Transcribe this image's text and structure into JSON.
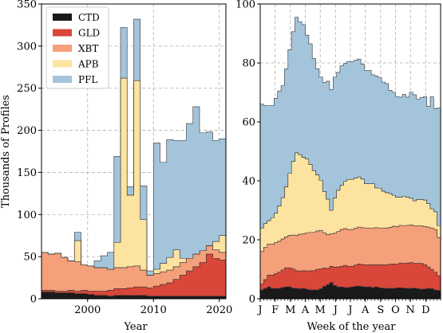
{
  "chart_data": [
    {
      "type": "area",
      "step": true,
      "xlabel": "Year",
      "ylabel": "Thousands of Profiles",
      "xlim": [
        1993,
        2021
      ],
      "ylim": [
        0,
        350
      ],
      "x_ticks": [
        2000,
        2010,
        2020
      ],
      "x_tick_labels": [
        "2000",
        "2010",
        "2020"
      ],
      "y_ticks": [
        0,
        50,
        100,
        150,
        200,
        250,
        300,
        350
      ],
      "y_tick_labels": [
        "0",
        "50",
        "100",
        "150",
        "200",
        "250",
        "300",
        "350"
      ],
      "grid": true,
      "legend_position": "top-left",
      "x": [
        1993,
        1994,
        1995,
        1996,
        1997,
        1998,
        1999,
        2000,
        2001,
        2002,
        2003,
        2004,
        2005,
        2006,
        2007,
        2008,
        2009,
        2010,
        2011,
        2012,
        2013,
        2014,
        2015,
        2016,
        2017,
        2018,
        2019,
        2020
      ],
      "series": [
        {
          "name": "CTD",
          "color": "#1a1a1a",
          "values": [
            8,
            8,
            7,
            7,
            7,
            6,
            6,
            5,
            4,
            4,
            3,
            4,
            4,
            4,
            4,
            4,
            3,
            3,
            3,
            3,
            3,
            3,
            3,
            3,
            3,
            3,
            3,
            3
          ]
        },
        {
          "name": "GLD",
          "color": "#d9463a",
          "values": [
            2,
            2,
            2,
            2,
            3,
            3,
            4,
            4,
            5,
            5,
            7,
            8,
            8,
            9,
            10,
            10,
            10,
            12,
            14,
            16,
            20,
            25,
            30,
            35,
            40,
            50,
            45,
            43
          ]
        },
        {
          "name": "XBT",
          "color": "#f4a07a",
          "values": [
            45,
            43,
            45,
            40,
            35,
            35,
            30,
            30,
            28,
            28,
            25,
            25,
            25,
            25,
            25,
            20,
            15,
            15,
            15,
            15,
            15,
            15,
            15,
            15,
            14,
            10,
            10,
            9
          ]
        },
        {
          "name": "APB",
          "color": "#fde3a0",
          "values": [
            0,
            0,
            0,
            0,
            0,
            25,
            0,
            0,
            0,
            0,
            0,
            30,
            225,
            85,
            220,
            60,
            0,
            5,
            10,
            15,
            20,
            5,
            0,
            0,
            0,
            0,
            10,
            20
          ]
        },
        {
          "name": "PFL",
          "color": "#a3c4db",
          "values": [
            0,
            0,
            0,
            0,
            0,
            10,
            0,
            0,
            8,
            14,
            20,
            102,
            60,
            10,
            73,
            40,
            5,
            150,
            120,
            140,
            130,
            140,
            160,
            175,
            140,
            135,
            120,
            115
          ]
        }
      ]
    },
    {
      "type": "area",
      "step": true,
      "xlabel": "Week of the year",
      "ylabel": "",
      "xlim": [
        1,
        53
      ],
      "ylim": [
        0,
        100
      ],
      "x_ticks": [
        1,
        5.3,
        9.7,
        14,
        18.3,
        22.7,
        27,
        31.3,
        35.7,
        40,
        44.3,
        48.7
      ],
      "x_tick_labels": [
        "J",
        "F",
        "M",
        "A",
        "M",
        "J",
        "J",
        "A",
        "S",
        "O",
        "N",
        "D"
      ],
      "y_ticks": [
        0,
        20,
        40,
        60,
        80,
        100
      ],
      "y_tick_labels": [
        "0",
        "20",
        "40",
        "60",
        "80",
        "100"
      ],
      "grid": true,
      "x": [
        1,
        2,
        3,
        4,
        5,
        6,
        7,
        8,
        9,
        10,
        11,
        12,
        13,
        14,
        15,
        16,
        17,
        18,
        19,
        20,
        21,
        22,
        23,
        24,
        25,
        26,
        27,
        28,
        29,
        30,
        31,
        32,
        33,
        34,
        35,
        36,
        37,
        38,
        39,
        40,
        41,
        42,
        43,
        44,
        45,
        46,
        47,
        48,
        49,
        50,
        51,
        52
      ],
      "series": [
        {
          "name": "CTD",
          "color": "#1a1a1a",
          "values": [
            3,
            3.5,
            4,
            3.5,
            3.5,
            3.5,
            3.8,
            4,
            4,
            3.6,
            3.5,
            3.4,
            3.5,
            3.2,
            3,
            3,
            3,
            3.4,
            4.2,
            4.8,
            5.5,
            4.5,
            4,
            4,
            3.8,
            3.8,
            4,
            4.2,
            4.3,
            4.1,
            4,
            4,
            3.8,
            4,
            3.7,
            3.6,
            3.5,
            3.5,
            3.5,
            3.7,
            3.7,
            3.6,
            3.5,
            3.5,
            3.6,
            3.4,
            3.2,
            3.3,
            3.5,
            3.4,
            3,
            2.8
          ]
        },
        {
          "name": "GLD",
          "color": "#d9463a",
          "values": [
            2,
            3,
            4,
            4.5,
            5,
            5.5,
            6,
            6.5,
            6.5,
            6.5,
            6,
            6,
            6,
            6.2,
            6.5,
            6.5,
            7,
            6.8,
            6.2,
            5.5,
            5.5,
            6.2,
            6.8,
            7,
            7.5,
            7.2,
            7,
            7.2,
            7.5,
            7.5,
            7.5,
            7.5,
            7.7,
            7.6,
            7.8,
            7.9,
            8,
            8.2,
            8.3,
            8,
            8.4,
            8.4,
            8.6,
            8.8,
            8.4,
            8.6,
            8.8,
            8.2,
            7.3,
            6.6,
            6,
            5
          ]
        },
        {
          "name": "XBT",
          "color": "#f4a07a",
          "values": [
            11,
            11,
            10.5,
            10.5,
            10.5,
            10.5,
            10.5,
            10.5,
            11,
            11.5,
            12,
            12.5,
            12.5,
            13,
            13,
            13,
            13,
            13,
            12,
            11.5,
            11,
            11.5,
            12,
            12.5,
            12.5,
            12.5,
            12.5,
            12.5,
            12.5,
            12.5,
            12.5,
            12.5,
            12.5,
            12.5,
            12.5,
            12.5,
            12.5,
            12.5,
            12.8,
            12.8,
            12.8,
            12.8,
            12.8,
            12.8,
            12.7,
            12.7,
            12.7,
            13,
            13.5,
            14,
            14.5,
            13
          ]
        },
        {
          "name": "APB",
          "color": "#fde3a0",
          "values": [
            8,
            8,
            8,
            9,
            10,
            12,
            14,
            17,
            21,
            25,
            28,
            27,
            26,
            25,
            23,
            21,
            19,
            17,
            14,
            12,
            8,
            12,
            14,
            15,
            16,
            17,
            17,
            17,
            17,
            16.5,
            15,
            15,
            15,
            13.5,
            13.5,
            12.5,
            12,
            11.5,
            10.5,
            10,
            9.5,
            10,
            9.5,
            9,
            8.5,
            9,
            9,
            9,
            8,
            6.5,
            6,
            4
          ]
        },
        {
          "name": "PFL",
          "color": "#a3c4db",
          "values": [
            42,
            40,
            39,
            38,
            39,
            39,
            38,
            40,
            42,
            44,
            46,
            45,
            45,
            42,
            41,
            38,
            36,
            35,
            37,
            40,
            41,
            41,
            40,
            40.5,
            40,
            40,
            40,
            40,
            40,
            39,
            38.5,
            38.5,
            37,
            38,
            37.5,
            37,
            37,
            35,
            35,
            34,
            34,
            34.5,
            34,
            36,
            36,
            34,
            34.5,
            35,
            33,
            38,
            35,
            40
          ]
        }
      ]
    }
  ]
}
